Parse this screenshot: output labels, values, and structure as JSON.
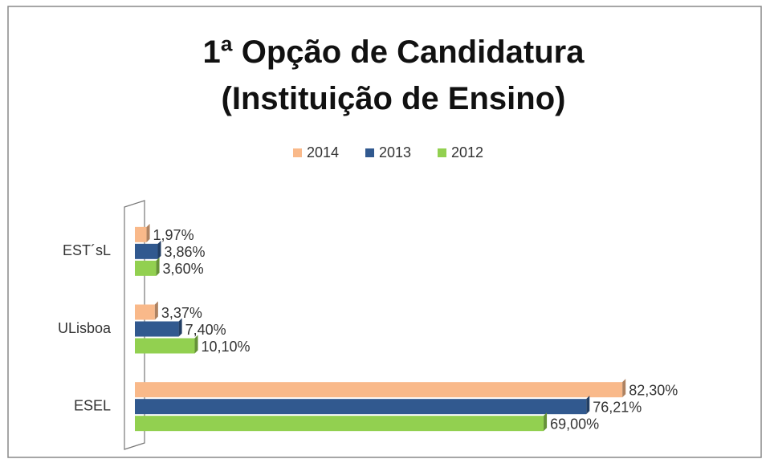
{
  "chart_data": {
    "type": "bar",
    "orientation": "horizontal",
    "title": "1ª Opção de Candidatura (Instituição de Ensino)",
    "categories": [
      "EST´sL",
      "ULisboa",
      "ESEL"
    ],
    "series": [
      {
        "name": "2014",
        "color": "#f9b98a",
        "values": [
          1.97,
          3.37,
          82.3
        ],
        "value_labels": [
          "1,97%",
          "3,37%",
          "82,30%"
        ]
      },
      {
        "name": "2013",
        "color": "#31598f",
        "values": [
          3.86,
          7.4,
          76.21
        ],
        "value_labels": [
          "3,86%",
          "7,40%",
          "76,21%"
        ]
      },
      {
        "name": "2012",
        "color": "#92d050",
        "values": [
          3.6,
          10.1,
          69
        ],
        "value_labels": [
          "3,60%",
          "10,10%",
          "69,00%"
        ]
      }
    ],
    "xlim": [
      0,
      90
    ],
    "legend": "top"
  }
}
